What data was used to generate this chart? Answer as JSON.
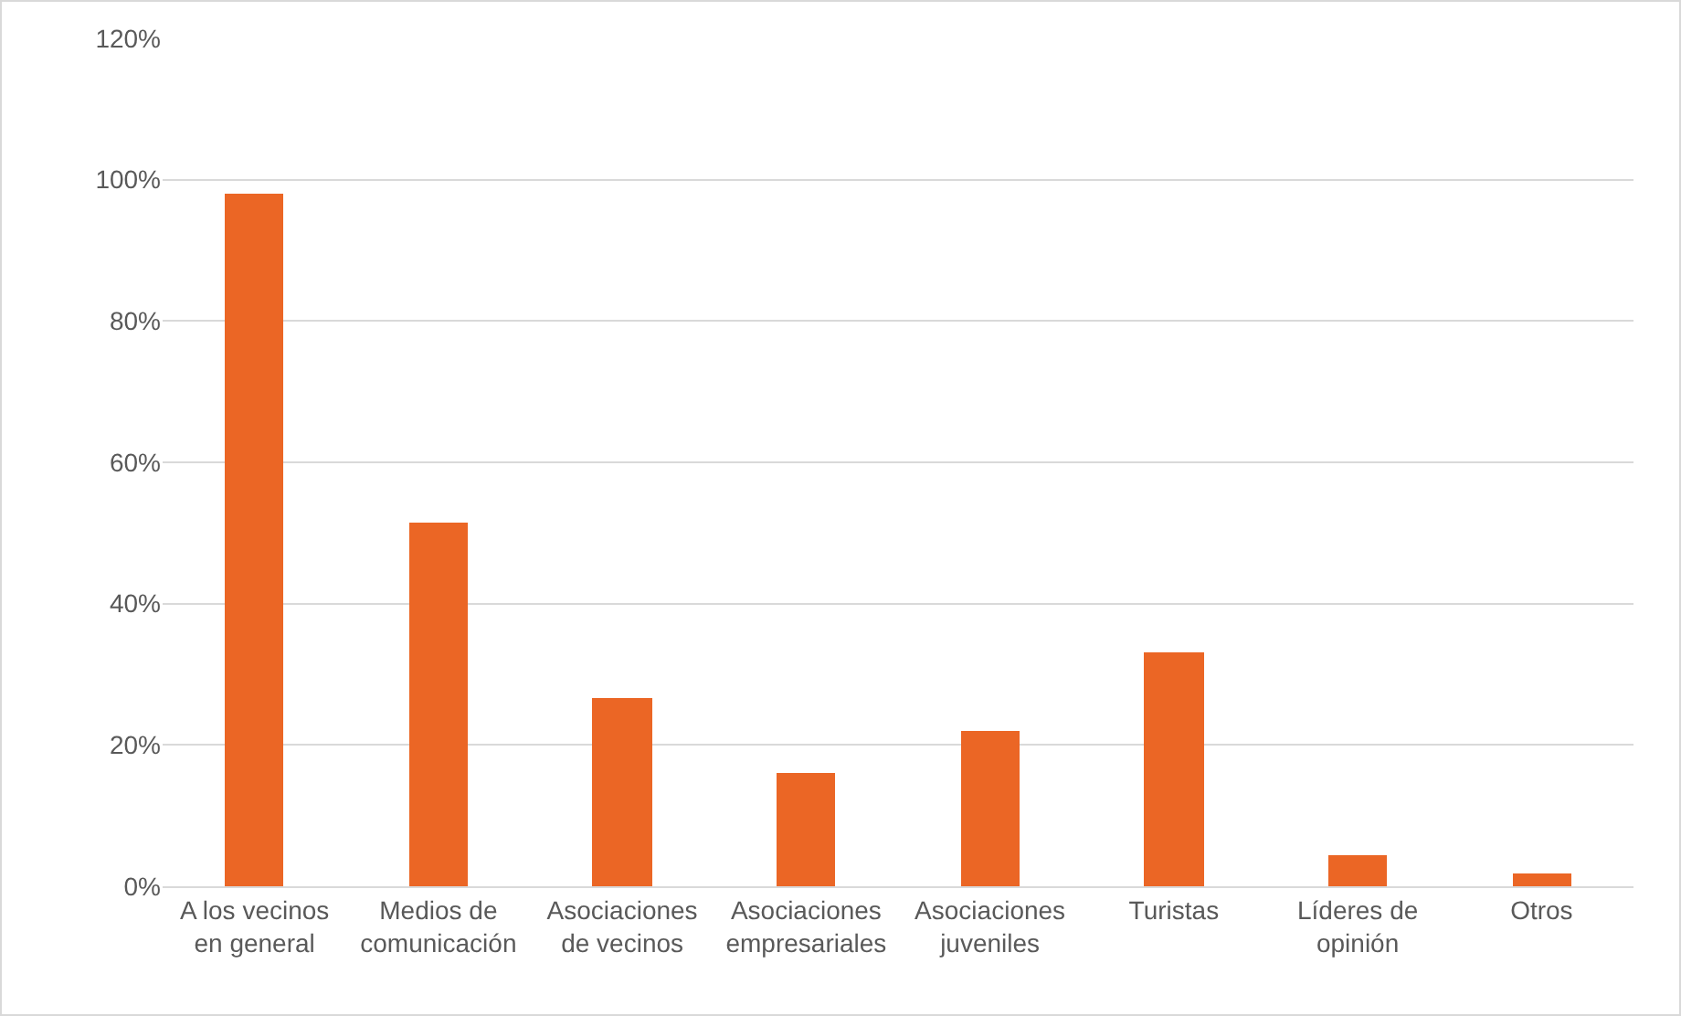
{
  "chart_data": {
    "type": "bar",
    "categories": [
      "A los vecinos\nen general",
      "Medios de\ncomunicación",
      "Asociaciones\nde vecinos",
      "Asociaciones\nempresariales",
      "Asociaciones\njuveniles",
      "Turistas",
      "Líderes de\nopinión",
      "Otros"
    ],
    "values": [
      98,
      51.5,
      26.7,
      16,
      22,
      33,
      4.4,
      1.7
    ],
    "color": "#eb6625",
    "ylim": [
      0,
      120
    ],
    "yticks": [
      {
        "value": 0,
        "label": "0%"
      },
      {
        "value": 20,
        "label": "20%"
      },
      {
        "value": 40,
        "label": "40%"
      },
      {
        "value": 60,
        "label": "60%"
      },
      {
        "value": 80,
        "label": "80%"
      },
      {
        "value": 100,
        "label": "100%"
      },
      {
        "value": 120,
        "label": "120%"
      }
    ],
    "grid": "y",
    "legend": false
  }
}
